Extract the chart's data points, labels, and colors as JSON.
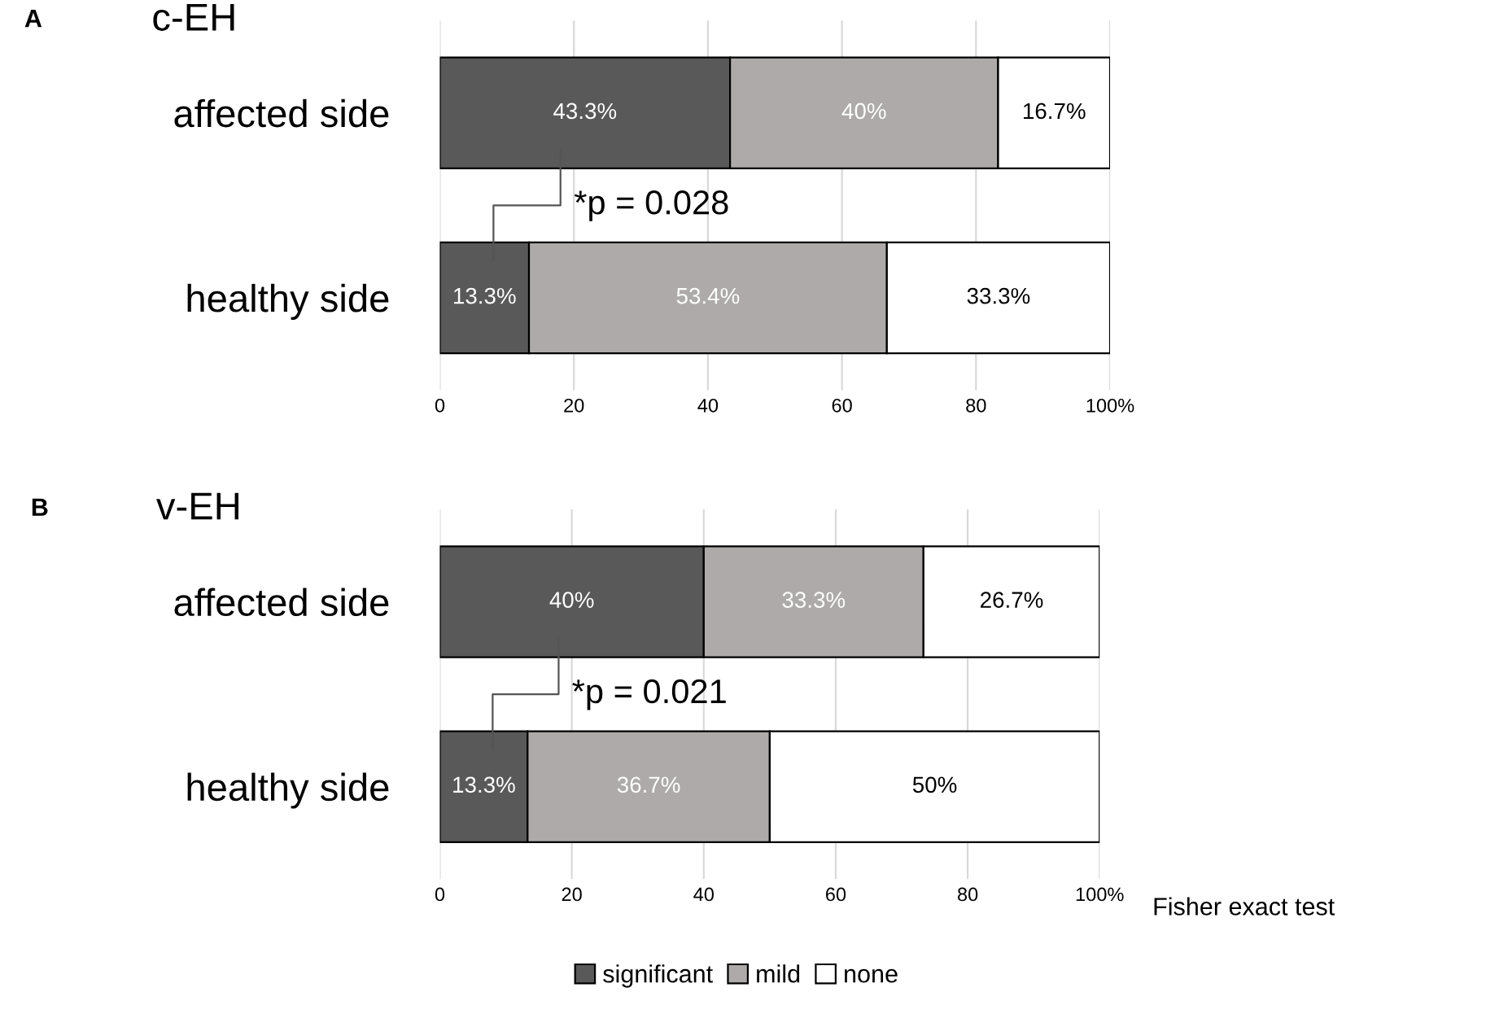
{
  "chart_data": [
    {
      "type": "bar",
      "orientation": "horizontal",
      "stacked": true,
      "title": "c-EH",
      "categories": [
        "affected side",
        "healthy side"
      ],
      "series": [
        {
          "color": "#595959",
          "values": [
            43.3,
            13.3
          ],
          "value_labels": [
            "43.3%",
            "13.3%"
          ]
        },
        {
          "color": "#aeaaaa",
          "values": [
            40,
            53.4
          ],
          "value_labels": [
            "40%",
            "53.4%"
          ]
        },
        {
          "color": "#ffffff",
          "values": [
            16.7,
            33.3
          ],
          "value_labels": [
            "16.7%",
            "33.3%"
          ]
        }
      ],
      "xlim": [
        0,
        100
      ],
      "xticks": [
        0,
        20,
        40,
        60,
        80,
        {
          "value": 100,
          "label": "100%"
        }
      ],
      "grid": "x",
      "legend": false,
      "annotations": [
        "A",
        "*p = 0.028"
      ]
    },
    {
      "type": "bar",
      "orientation": "horizontal",
      "stacked": true,
      "title": "v-EH",
      "categories": [
        "affected side",
        "healthy side"
      ],
      "series": [
        {
          "name": "significant",
          "color": "#595959",
          "values": [
            40,
            13.3
          ],
          "value_labels": [
            "40%",
            "13.3%"
          ]
        },
        {
          "name": "mild",
          "color": "#aeaaaa",
          "values": [
            33.3,
            36.7
          ],
          "value_labels": [
            "33.3%",
            "36.7%"
          ]
        },
        {
          "name": "none",
          "color": "#ffffff",
          "values": [
            26.7,
            50
          ],
          "value_labels": [
            "26.7%",
            "50%"
          ]
        }
      ],
      "xlim": [
        0,
        100
      ],
      "xticks": [
        0,
        20,
        40,
        60,
        80,
        {
          "value": 100,
          "label": "100%"
        }
      ],
      "grid": "x",
      "legend": "bottom",
      "annotations": [
        "B",
        "*p = 0.021",
        "Fisher exact test"
      ]
    }
  ]
}
